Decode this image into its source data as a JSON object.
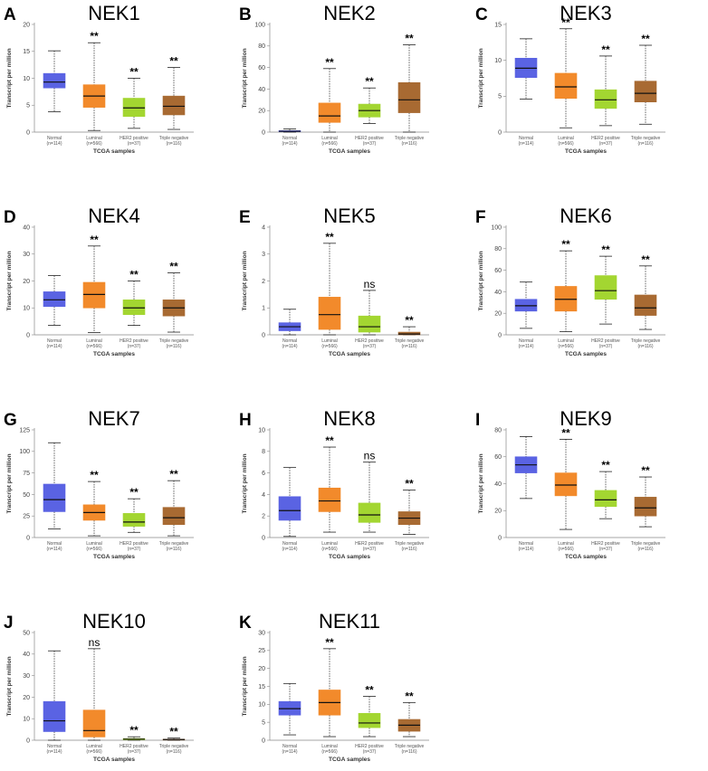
{
  "figure": {
    "common": {
      "ylabel": "Transcript per million",
      "xlabel": "TCGA samples",
      "categories": [
        "Normal",
        "Luminal",
        "HER2 positive",
        "Triple negative"
      ],
      "category_counts": [
        "(n=114)",
        "(n=566)",
        "(n=37)",
        "(n=116)"
      ]
    },
    "colors": {
      "Normal": "#5a63e3",
      "Luminal": "#f28a2b",
      "HER2 positive": "#a3d631",
      "Triple negative": "#a86a32"
    }
  },
  "chart_data": [
    {
      "type": "box",
      "letter": "A",
      "title": "NEK1",
      "ylim": [
        0,
        20
      ],
      "yticks": [
        0,
        5,
        10,
        15,
        20
      ],
      "series": [
        {
          "category": "Normal",
          "min": 3.8,
          "q1": 8.2,
          "median": 9.3,
          "q3": 10.9,
          "max": 15.1,
          "sig": ""
        },
        {
          "category": "Luminal",
          "min": 0.3,
          "q1": 4.6,
          "median": 6.7,
          "q3": 8.8,
          "max": 16.6,
          "sig": "**"
        },
        {
          "category": "HER2 positive",
          "min": 0.7,
          "q1": 2.9,
          "median": 4.5,
          "q3": 6.3,
          "max": 10.0,
          "sig": "**"
        },
        {
          "category": "Triple negative",
          "min": 0.5,
          "q1": 3.2,
          "median": 4.8,
          "q3": 6.7,
          "max": 12.0,
          "sig": "**"
        }
      ]
    },
    {
      "type": "box",
      "letter": "B",
      "title": "NEK2",
      "ylim": [
        0,
        100
      ],
      "yticks": [
        0,
        20,
        40,
        60,
        80,
        100
      ],
      "series": [
        {
          "category": "Normal",
          "min": 0,
          "q1": 0.4,
          "median": 0.8,
          "q3": 1.4,
          "max": 3.0,
          "sig": ""
        },
        {
          "category": "Luminal",
          "min": 0,
          "q1": 9,
          "median": 15,
          "q3": 27,
          "max": 59,
          "sig": "**"
        },
        {
          "category": "HER2 positive",
          "min": 8,
          "q1": 14,
          "median": 20,
          "q3": 26,
          "max": 41,
          "sig": "**"
        },
        {
          "category": "Triple negative",
          "min": 0,
          "q1": 18,
          "median": 30,
          "q3": 46,
          "max": 81,
          "sig": "**"
        }
      ]
    },
    {
      "type": "box",
      "letter": "C",
      "title": "NEK3",
      "ylim": [
        0,
        15
      ],
      "yticks": [
        0,
        5,
        10,
        15
      ],
      "series": [
        {
          "category": "Normal",
          "min": 4.6,
          "q1": 7.6,
          "median": 8.9,
          "q3": 10.3,
          "max": 13.0,
          "sig": ""
        },
        {
          "category": "Luminal",
          "min": 0.6,
          "q1": 4.7,
          "median": 6.3,
          "q3": 8.2,
          "max": 14.4,
          "sig": "**"
        },
        {
          "category": "HER2 positive",
          "min": 0.9,
          "q1": 3.3,
          "median": 4.5,
          "q3": 5.9,
          "max": 10.6,
          "sig": "**"
        },
        {
          "category": "Triple negative",
          "min": 1.1,
          "q1": 4.2,
          "median": 5.4,
          "q3": 7.1,
          "max": 12.1,
          "sig": "**"
        }
      ]
    },
    {
      "type": "box",
      "letter": "D",
      "title": "NEK4",
      "ylim": [
        0,
        40
      ],
      "yticks": [
        0,
        10,
        20,
        30,
        40
      ],
      "series": [
        {
          "category": "Normal",
          "min": 3.5,
          "q1": 10.5,
          "median": 13,
          "q3": 16,
          "max": 22,
          "sig": ""
        },
        {
          "category": "Luminal",
          "min": 0.8,
          "q1": 10,
          "median": 15,
          "q3": 19.5,
          "max": 33,
          "sig": "**"
        },
        {
          "category": "HER2 positive",
          "min": 3.5,
          "q1": 7.5,
          "median": 10,
          "q3": 13,
          "max": 20,
          "sig": "**"
        },
        {
          "category": "Triple negative",
          "min": 1,
          "q1": 7,
          "median": 10,
          "q3": 13,
          "max": 23,
          "sig": "**"
        }
      ]
    },
    {
      "type": "box",
      "letter": "E",
      "title": "NEK5",
      "ylim": [
        0,
        4
      ],
      "yticks": [
        0,
        1,
        2,
        3,
        4
      ],
      "series": [
        {
          "category": "Normal",
          "min": 0,
          "q1": 0.15,
          "median": 0.3,
          "q3": 0.45,
          "max": 0.95,
          "sig": ""
        },
        {
          "category": "Luminal",
          "min": 0,
          "q1": 0.2,
          "median": 0.75,
          "q3": 1.4,
          "max": 3.4,
          "sig": "**"
        },
        {
          "category": "HER2 positive",
          "min": 0,
          "q1": 0.1,
          "median": 0.3,
          "q3": 0.7,
          "max": 1.65,
          "sig": "ns"
        },
        {
          "category": "Triple negative",
          "min": 0,
          "q1": 0,
          "median": 0.03,
          "q3": 0.1,
          "max": 0.3,
          "sig": "**"
        }
      ]
    },
    {
      "type": "box",
      "letter": "F",
      "title": "NEK6",
      "ylim": [
        0,
        100
      ],
      "yticks": [
        0,
        20,
        40,
        60,
        80,
        100
      ],
      "series": [
        {
          "category": "Normal",
          "min": 6,
          "q1": 22,
          "median": 27,
          "q3": 33,
          "max": 49,
          "sig": ""
        },
        {
          "category": "Luminal",
          "min": 3,
          "q1": 22,
          "median": 33,
          "q3": 45,
          "max": 78,
          "sig": "**"
        },
        {
          "category": "HER2 positive",
          "min": 10,
          "q1": 33,
          "median": 41,
          "q3": 55,
          "max": 73,
          "sig": "**"
        },
        {
          "category": "Triple negative",
          "min": 5,
          "q1": 18,
          "median": 25,
          "q3": 37,
          "max": 64,
          "sig": "**"
        }
      ]
    },
    {
      "type": "box",
      "letter": "G",
      "title": "NEK7",
      "ylim": [
        0,
        125
      ],
      "yticks": [
        0,
        25,
        50,
        75,
        100,
        125
      ],
      "series": [
        {
          "category": "Normal",
          "min": 10,
          "q1": 30,
          "median": 44,
          "q3": 62,
          "max": 110,
          "sig": ""
        },
        {
          "category": "Luminal",
          "min": 2,
          "q1": 20,
          "median": 29,
          "q3": 38,
          "max": 65,
          "sig": "**"
        },
        {
          "category": "HER2 positive",
          "min": 6,
          "q1": 13,
          "median": 18,
          "q3": 28,
          "max": 45,
          "sig": "**"
        },
        {
          "category": "Triple negative",
          "min": 2,
          "q1": 15,
          "median": 23,
          "q3": 35,
          "max": 66,
          "sig": "**"
        }
      ]
    },
    {
      "type": "box",
      "letter": "H",
      "title": "NEK8",
      "ylim": [
        0,
        10
      ],
      "yticks": [
        0,
        2,
        4,
        6,
        8,
        10
      ],
      "series": [
        {
          "category": "Normal",
          "min": 0.1,
          "q1": 1.6,
          "median": 2.5,
          "q3": 3.8,
          "max": 6.5,
          "sig": ""
        },
        {
          "category": "Luminal",
          "min": 0.5,
          "q1": 2.4,
          "median": 3.4,
          "q3": 4.6,
          "max": 8.4,
          "sig": "**"
        },
        {
          "category": "HER2 positive",
          "min": 0.5,
          "q1": 1.4,
          "median": 2.1,
          "q3": 3.2,
          "max": 7.0,
          "sig": "ns"
        },
        {
          "category": "Triple negative",
          "min": 0.3,
          "q1": 1.2,
          "median": 1.8,
          "q3": 2.4,
          "max": 4.4,
          "sig": "**"
        }
      ]
    },
    {
      "type": "box",
      "letter": "I",
      "title": "NEK9",
      "ylim": [
        0,
        80
      ],
      "yticks": [
        0,
        20,
        40,
        60,
        80
      ],
      "series": [
        {
          "category": "Normal",
          "min": 29,
          "q1": 48,
          "median": 54,
          "q3": 60,
          "max": 75,
          "sig": ""
        },
        {
          "category": "Luminal",
          "min": 6,
          "q1": 31,
          "median": 39,
          "q3": 48,
          "max": 73,
          "sig": "**"
        },
        {
          "category": "HER2 positive",
          "min": 14,
          "q1": 23,
          "median": 28,
          "q3": 35,
          "max": 49,
          "sig": "**"
        },
        {
          "category": "Triple negative",
          "min": 8,
          "q1": 16,
          "median": 22,
          "q3": 30,
          "max": 45,
          "sig": "**"
        }
      ]
    },
    {
      "type": "box",
      "letter": "J",
      "title": "NEK10",
      "ylim": [
        0,
        50
      ],
      "yticks": [
        0,
        10,
        20,
        30,
        40,
        50
      ],
      "series": [
        {
          "category": "Normal",
          "min": 0,
          "q1": 4,
          "median": 9,
          "q3": 18,
          "max": 41.5,
          "sig": ""
        },
        {
          "category": "Luminal",
          "min": 0,
          "q1": 1.5,
          "median": 4.5,
          "q3": 14,
          "max": 42.5,
          "sig": "ns"
        },
        {
          "category": "HER2 positive",
          "min": 0,
          "q1": 0.2,
          "median": 0.5,
          "q3": 0.8,
          "max": 1.6,
          "sig": "**"
        },
        {
          "category": "Triple negative",
          "min": 0,
          "q1": 0.1,
          "median": 0.3,
          "q3": 0.5,
          "max": 1.0,
          "sig": "**"
        }
      ]
    },
    {
      "type": "box",
      "letter": "K",
      "title": "NEK11",
      "ylim": [
        0,
        30
      ],
      "yticks": [
        0,
        5,
        10,
        15,
        20,
        25,
        30
      ],
      "series": [
        {
          "category": "Normal",
          "min": 1.5,
          "q1": 7,
          "median": 8.8,
          "q3": 10.8,
          "max": 15.8,
          "sig": ""
        },
        {
          "category": "Luminal",
          "min": 1,
          "q1": 7,
          "median": 10.5,
          "q3": 14,
          "max": 25.5,
          "sig": "**"
        },
        {
          "category": "HER2 positive",
          "min": 1,
          "q1": 3.5,
          "median": 4.8,
          "q3": 7.5,
          "max": 12.2,
          "sig": "**"
        },
        {
          "category": "Triple negative",
          "min": 1,
          "q1": 2.5,
          "median": 4.2,
          "q3": 5.8,
          "max": 10.5,
          "sig": "**"
        }
      ]
    }
  ]
}
